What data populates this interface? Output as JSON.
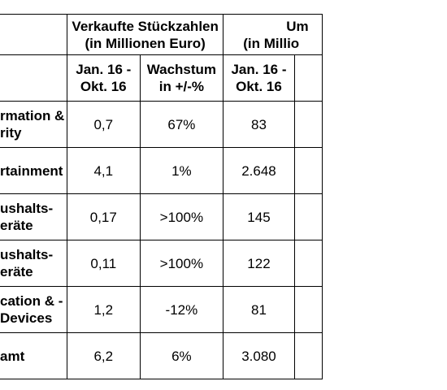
{
  "table": {
    "group_headers": [
      {
        "line1": "Verkaufte Stückzahlen",
        "line2": "(in Millionen Euro)"
      },
      {
        "line1": "Um",
        "line2": "(in Millio"
      }
    ],
    "sub_headers": [
      {
        "line1": "Jan. 16 -",
        "line2": "Okt. 16"
      },
      {
        "line1": "Wachstum",
        "line2": "in +/-%"
      },
      {
        "line1": "Jan. 16 -",
        "line2": "Okt. 16"
      }
    ],
    "rows": [
      {
        "label_line1": "rmation &",
        "label_line2": "rity",
        "units": "0,7",
        "growth": "67%",
        "revenue": "83"
      },
      {
        "label_line1": "rtainment",
        "label_line2": "",
        "units": "4,1",
        "growth": "1%",
        "revenue": "2.648"
      },
      {
        "label_line1": "ushalts-",
        "label_line2": "eräte",
        "units": "0,17",
        "growth": ">100%",
        "revenue": "145"
      },
      {
        "label_line1": "ushalts-",
        "label_line2": "eräte",
        "units": "0,11",
        "growth": ">100%",
        "revenue": "122"
      },
      {
        "label_line1": "cation & -",
        "label_line2": "Devices",
        "units": "1,2",
        "growth": "-12%",
        "revenue": "81"
      },
      {
        "label_line1": "amt",
        "label_line2": "",
        "units": "6,2",
        "growth": "6%",
        "revenue": "3.080"
      }
    ]
  }
}
